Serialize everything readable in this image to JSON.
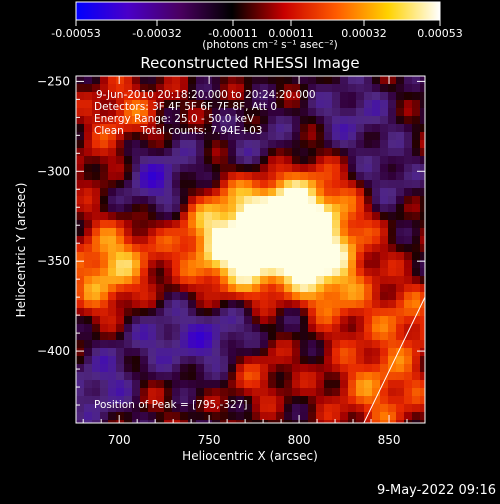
{
  "colorbar": {
    "tick_labels": [
      "-0.00053",
      "-0.00032",
      "-0.00011",
      "0.00011",
      "0.00032",
      "0.00053"
    ],
    "unit_label": "(photons cm⁻² s⁻¹ asec⁻²)",
    "colors": [
      "#0000ff",
      "#4a00c8",
      "#4a0060",
      "#000000",
      "#c80000",
      "#ff5a00",
      "#ffd200",
      "#ffffff"
    ]
  },
  "chart_data": {
    "type": "heatmap",
    "title": "Reconstructed RHESSI Image",
    "xlabel": "Heliocentric X (arcsec)",
    "ylabel": "Heliocentric Y (arcsec)",
    "xlim": [
      676,
      870
    ],
    "ylim": [
      -440,
      -247
    ],
    "x_ticks": [
      700,
      750,
      800,
      850
    ],
    "y_ticks": [
      -250,
      -300,
      -350,
      -400
    ],
    "value_range": [
      -0.00053,
      0.00053
    ],
    "annotations": [
      "9-Jun-2010 20:18:20.000 to 20:24:20.000",
      "Detectors: 3F 4F 5F 6F 7F 8F, Att 0",
      "Energy Range: 25.0 - 50.0 keV",
      "Clean     Total counts: 7.94E+03"
    ],
    "peak_label": "Position of Peak = [795,-327]",
    "peak": [
      795,
      -327
    ],
    "limb_line": [
      [
        836,
        -440
      ],
      [
        870,
        -370
      ]
    ]
  },
  "footer": {
    "date": "9-May-2022 09:16"
  }
}
